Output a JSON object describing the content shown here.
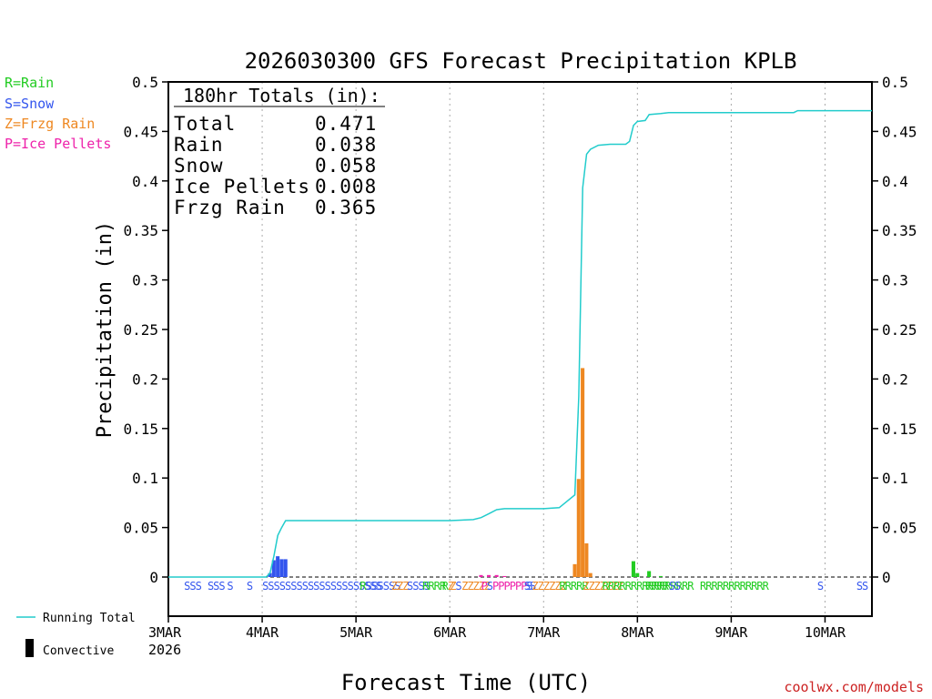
{
  "chart_data": {
    "type": "bar",
    "title": "2026030300 GFS Forecast Precipitation KPLB",
    "xlabel": "Forecast Time (UTC)",
    "ylabel": "Precipitation (in)",
    "ylim": [
      0,
      0.5
    ],
    "xlim_hours": [
      0,
      180
    ],
    "y_ticks": [
      "0",
      "0.05",
      "0.1",
      "0.15",
      "0.2",
      "0.25",
      "0.3",
      "0.35",
      "0.4",
      "0.45",
      "0.5"
    ],
    "x_ticks": [
      {
        "label": "3MAR",
        "hour": 0
      },
      {
        "label": "4MAR",
        "hour": 24
      },
      {
        "label": "5MAR",
        "hour": 48
      },
      {
        "label": "6MAR",
        "hour": 72
      },
      {
        "label": "7MAR",
        "hour": 96
      },
      {
        "label": "8MAR",
        "hour": 120
      },
      {
        "label": "9MAR",
        "hour": 144
      },
      {
        "label": "10MAR",
        "hour": 168
      }
    ],
    "x_year_label": "2026",
    "legend_ptype": [
      {
        "label": "R=Rain",
        "color": "#22cc22"
      },
      {
        "label": "S=Snow",
        "color": "#3355ee"
      },
      {
        "label": "Z=Frzg Rain",
        "color": "#ee8822"
      },
      {
        "label": "P=Ice Pellets",
        "color": "#ee22aa"
      }
    ],
    "legend_bottom": {
      "running_total": "Running Total",
      "convective": "Convective"
    },
    "totals_box": {
      "header": "180hr Totals (in):",
      "rows": [
        {
          "label": "Total",
          "value": "0.471"
        },
        {
          "label": "Rain",
          "value": "0.038"
        },
        {
          "label": "Snow",
          "value": "0.058"
        },
        {
          "label": "Ice Pellets",
          "value": "0.008"
        },
        {
          "label": "Frzg Rain",
          "value": "0.365"
        }
      ]
    },
    "bars": [
      {
        "hour": 26,
        "value": 0.004,
        "type": "S"
      },
      {
        "hour": 27,
        "value": 0.017,
        "type": "S"
      },
      {
        "hour": 28,
        "value": 0.021,
        "type": "S"
      },
      {
        "hour": 29,
        "value": 0.018,
        "type": "S"
      },
      {
        "hour": 30,
        "value": 0.018,
        "type": "S"
      },
      {
        "hour": 80,
        "value": 0.002,
        "type": "P"
      },
      {
        "hour": 82,
        "value": 0.002,
        "type": "P"
      },
      {
        "hour": 84,
        "value": 0.002,
        "type": "P"
      },
      {
        "hour": 86,
        "value": 0.001,
        "type": "P"
      },
      {
        "hour": 104,
        "value": 0.013,
        "type": "Z"
      },
      {
        "hour": 105,
        "value": 0.099,
        "type": "Z"
      },
      {
        "hour": 106,
        "value": 0.211,
        "type": "Z"
      },
      {
        "hour": 107,
        "value": 0.034,
        "type": "Z"
      },
      {
        "hour": 108,
        "value": 0.004,
        "type": "Z"
      },
      {
        "hour": 119,
        "value": 0.016,
        "type": "R"
      },
      {
        "hour": 120,
        "value": 0.004,
        "type": "R"
      },
      {
        "hour": 123,
        "value": 0.006,
        "type": "R"
      },
      {
        "hour": 126,
        "value": 0.001,
        "type": "R"
      }
    ],
    "running_total": [
      [
        0,
        0
      ],
      [
        25,
        0
      ],
      [
        26,
        0.004
      ],
      [
        27,
        0.021
      ],
      [
        28,
        0.042
      ],
      [
        29,
        0.05
      ],
      [
        30,
        0.057
      ],
      [
        72,
        0.057
      ],
      [
        78,
        0.058
      ],
      [
        80,
        0.06
      ],
      [
        82,
        0.064
      ],
      [
        84,
        0.068
      ],
      [
        86,
        0.069
      ],
      [
        96,
        0.069
      ],
      [
        100,
        0.07
      ],
      [
        104,
        0.083
      ],
      [
        105,
        0.182
      ],
      [
        106,
        0.393
      ],
      [
        107,
        0.427
      ],
      [
        108,
        0.432
      ],
      [
        110,
        0.436
      ],
      [
        113,
        0.437
      ],
      [
        117,
        0.437
      ],
      [
        118,
        0.44
      ],
      [
        119,
        0.456
      ],
      [
        120,
        0.46
      ],
      [
        122,
        0.461
      ],
      [
        123,
        0.467
      ],
      [
        126,
        0.468
      ],
      [
        128,
        0.469
      ],
      [
        140,
        0.469
      ],
      [
        160,
        0.469
      ],
      [
        161,
        0.471
      ],
      [
        180,
        0.471
      ]
    ],
    "ptype_row": [
      {
        "hour": 4,
        "text": "SSS"
      },
      {
        "hour": 10,
        "text": "SSS"
      },
      {
        "hour": 15,
        "text": "S"
      },
      {
        "hour": 20,
        "text": "S"
      },
      {
        "hour": 24,
        "text": "SSSSSSSSSSSSSSSSSSSSS"
      },
      {
        "hour": 49,
        "text": "RS"
      },
      {
        "hour": 52,
        "text": "SSSSS"
      },
      {
        "hour": 57,
        "text": "ZZZ"
      },
      {
        "hour": 61,
        "text": "SSSS"
      },
      {
        "hour": 65,
        "text": "RRRR"
      },
      {
        "hour": 70,
        "text": "RZ"
      },
      {
        "hour": 72,
        "text": "ZS"
      },
      {
        "hour": 75,
        "text": "ZZZZZ"
      },
      {
        "hour": 80,
        "text": "PSPPPPPPS"
      },
      {
        "hour": 91,
        "text": "SS"
      },
      {
        "hour": 93,
        "text": "ZZZZZZ"
      },
      {
        "hour": 100,
        "text": "RRRRR"
      },
      {
        "hour": 106,
        "text": "ZZZZZZZ"
      },
      {
        "hour": 111,
        "text": "RRRRRRRRRRRRRRRR"
      },
      {
        "hour": 122,
        "text": "RRRR"
      },
      {
        "hour": 128,
        "text": "SS"
      },
      {
        "hour": 136,
        "text": "RRRRRRRRRRRR"
      },
      {
        "hour": 166,
        "text": "S"
      },
      {
        "hour": 176,
        "text": "SS"
      }
    ],
    "ptype_colors": {
      "R": "#22cc22",
      "S": "#3355ee",
      "Z": "#ee8822",
      "P": "#ee22aa"
    },
    "line_color": "#22cccc",
    "footer_credit": "coolwx.com/models"
  }
}
